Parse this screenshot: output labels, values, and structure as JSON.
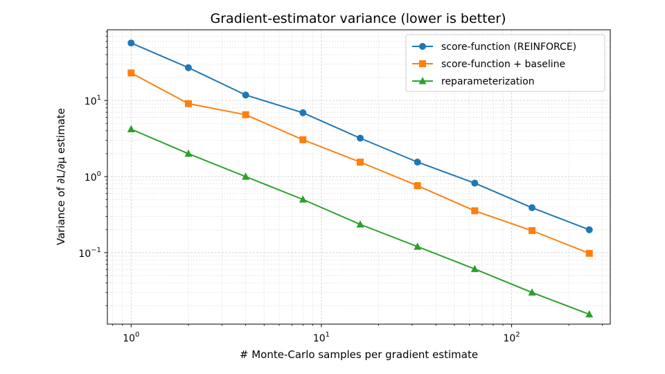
{
  "chart_data": {
    "type": "line",
    "title": "Gradient-estimator variance (lower is better)",
    "xlabel": "# Monte-Carlo samples per gradient estimate",
    "ylabel": "Variance of ∂L/∂μ estimate",
    "xscale": "log",
    "yscale": "log",
    "xlim": [
      0.75,
      330
    ],
    "ylim": [
      0.0115,
      85
    ],
    "grid": true,
    "legend_position": "top-right",
    "x": [
      1,
      2,
      4,
      8,
      16,
      32,
      64,
      128,
      256
    ],
    "x_ticks": [
      {
        "value": 1,
        "base": "10",
        "exp": "0"
      },
      {
        "value": 10,
        "base": "10",
        "exp": "1"
      },
      {
        "value": 100,
        "base": "10",
        "exp": "2"
      }
    ],
    "y_ticks": [
      {
        "value": 0.1,
        "base": "10",
        "exp": "−1"
      },
      {
        "value": 1,
        "base": "10",
        "exp": "0"
      },
      {
        "value": 10,
        "base": "10",
        "exp": "1"
      }
    ],
    "series": [
      {
        "name": "score-function (REINFORCE)",
        "color": "#1f77b4",
        "marker": "circle",
        "values": [
          57,
          27,
          11.8,
          6.9,
          3.2,
          1.55,
          0.82,
          0.39,
          0.2
        ]
      },
      {
        "name": "score-function + baseline",
        "color": "#ff7f0e",
        "marker": "square",
        "values": [
          23,
          9.1,
          6.5,
          3.05,
          1.55,
          0.76,
          0.355,
          0.195,
          0.098
        ]
      },
      {
        "name": "reparameterization",
        "color": "#2ca02c",
        "marker": "triangle",
        "values": [
          4.2,
          2.0,
          1.0,
          0.5,
          0.235,
          0.12,
          0.061,
          0.03,
          0.0155
        ]
      }
    ]
  }
}
